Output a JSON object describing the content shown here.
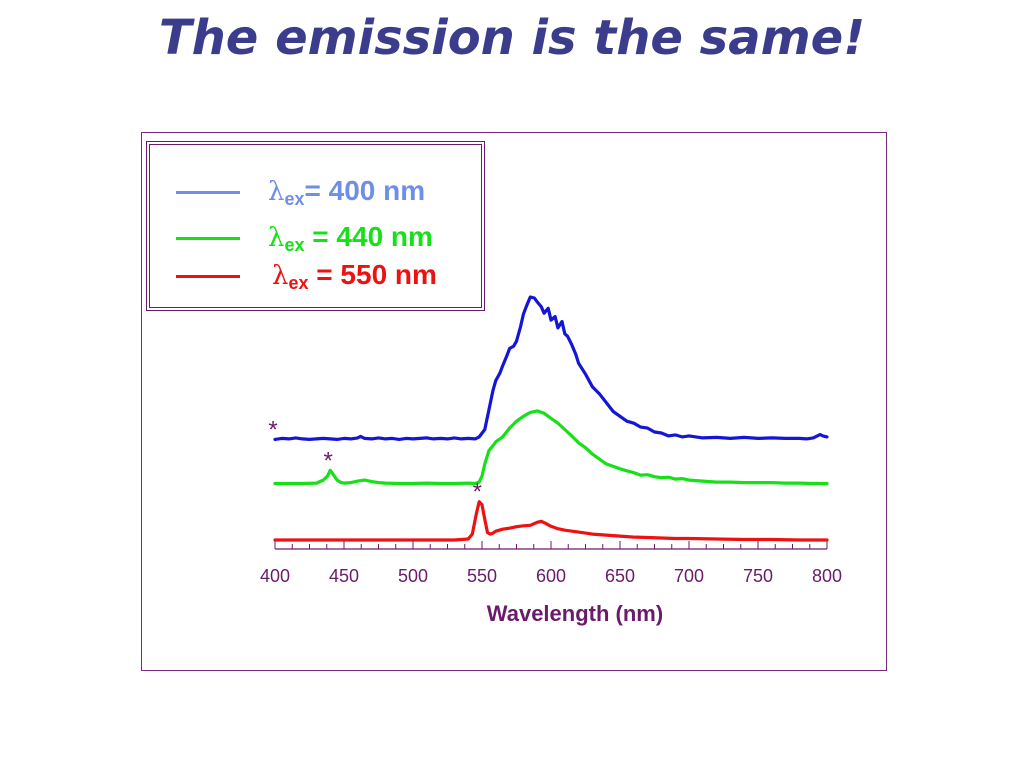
{
  "page": {
    "title": "The emission is the same!"
  },
  "chart_data": {
    "type": "line",
    "xlabel": "Wavelength (nm)",
    "ylabel": "",
    "xlim": [
      400,
      800
    ],
    "xticks": [
      400,
      450,
      500,
      550,
      600,
      650,
      700,
      750,
      800
    ],
    "y_axis_shown": false,
    "legend_position": "top-left",
    "series": [
      {
        "name_prefix": "λ",
        "name_sub": "ex",
        "name_suffix": "= 400 nm",
        "color": "#1515d6",
        "legend_color": "#6f8fe6",
        "x": [
          400,
          405,
          410,
          415,
          420,
          425,
          430,
          435,
          440,
          445,
          450,
          455,
          460,
          462,
          465,
          470,
          475,
          480,
          485,
          490,
          495,
          500,
          505,
          510,
          515,
          520,
          525,
          530,
          535,
          540,
          545,
          548,
          552,
          555,
          558,
          560,
          563,
          565,
          568,
          570,
          573,
          575,
          578,
          580,
          582,
          585,
          588,
          590,
          593,
          595,
          598,
          600,
          603,
          605,
          608,
          610,
          612,
          615,
          618,
          620,
          625,
          630,
          635,
          640,
          645,
          650,
          655,
          660,
          665,
          670,
          675,
          680,
          685,
          690,
          695,
          700,
          710,
          720,
          730,
          740,
          750,
          760,
          770,
          780,
          785,
          790,
          793,
          795,
          797,
          800
        ],
        "y": [
          2.05,
          2.07,
          2.06,
          2.08,
          2.06,
          2.05,
          2.06,
          2.07,
          2.06,
          2.05,
          2.07,
          2.06,
          2.08,
          2.11,
          2.07,
          2.06,
          2.08,
          2.06,
          2.07,
          2.05,
          2.07,
          2.06,
          2.07,
          2.08,
          2.06,
          2.07,
          2.06,
          2.08,
          2.06,
          2.07,
          2.06,
          2.1,
          2.25,
          2.65,
          3.05,
          3.25,
          3.4,
          3.55,
          3.75,
          3.9,
          3.95,
          4.05,
          4.35,
          4.6,
          4.75,
          4.95,
          4.93,
          4.85,
          4.75,
          4.62,
          4.72,
          4.48,
          4.55,
          4.32,
          4.45,
          4.2,
          4.15,
          3.98,
          3.78,
          3.6,
          3.38,
          3.12,
          2.98,
          2.8,
          2.62,
          2.52,
          2.42,
          2.38,
          2.3,
          2.28,
          2.2,
          2.18,
          2.12,
          2.14,
          2.1,
          2.12,
          2.08,
          2.09,
          2.07,
          2.09,
          2.07,
          2.08,
          2.07,
          2.07,
          2.06,
          2.08,
          2.12,
          2.15,
          2.12,
          2.1
        ]
      },
      {
        "name_prefix": "λ",
        "name_sub": "ex",
        "name_suffix": " = 440 nm",
        "color": "#16e016",
        "legend_color": "#16e016",
        "x": [
          400,
          410,
          420,
          430,
          435,
          438,
          440,
          442,
          445,
          448,
          450,
          455,
          460,
          465,
          470,
          475,
          480,
          490,
          500,
          510,
          520,
          530,
          540,
          545,
          548,
          550,
          552,
          555,
          558,
          560,
          565,
          570,
          575,
          580,
          585,
          590,
          595,
          600,
          605,
          610,
          615,
          620,
          625,
          630,
          635,
          640,
          645,
          650,
          655,
          660,
          665,
          670,
          675,
          680,
          685,
          690,
          695,
          700,
          710,
          720,
          730,
          740,
          750,
          760,
          770,
          780,
          790,
          800
        ],
        "y": [
          1.15,
          1.15,
          1.15,
          1.16,
          1.22,
          1.3,
          1.42,
          1.34,
          1.22,
          1.17,
          1.16,
          1.17,
          1.2,
          1.22,
          1.19,
          1.17,
          1.16,
          1.15,
          1.15,
          1.16,
          1.15,
          1.15,
          1.16,
          1.15,
          1.18,
          1.3,
          1.55,
          1.82,
          1.92,
          2.0,
          2.1,
          2.28,
          2.42,
          2.52,
          2.6,
          2.63,
          2.58,
          2.48,
          2.38,
          2.25,
          2.12,
          1.98,
          1.88,
          1.75,
          1.65,
          1.55,
          1.5,
          1.45,
          1.41,
          1.37,
          1.32,
          1.33,
          1.29,
          1.27,
          1.28,
          1.24,
          1.25,
          1.22,
          1.2,
          1.18,
          1.18,
          1.17,
          1.17,
          1.17,
          1.16,
          1.16,
          1.15,
          1.15
        ]
      },
      {
        "name_prefix": "λ",
        "name_sub": "ex",
        "name_suffix": " = 550 nm",
        "color": "#ee1111",
        "legend_color": "#ee1111",
        "x": [
          400,
          420,
          440,
          460,
          480,
          500,
          520,
          530,
          540,
          543,
          546,
          548,
          550,
          552,
          554,
          556,
          558,
          560,
          565,
          570,
          575,
          580,
          585,
          590,
          593,
          596,
          600,
          605,
          610,
          620,
          630,
          640,
          650,
          660,
          670,
          680,
          690,
          700,
          720,
          740,
          760,
          780,
          800
        ],
        "y": [
          0.0,
          0.0,
          0.0,
          0.0,
          0.0,
          0.0,
          0.0,
          0.0,
          0.02,
          0.12,
          0.55,
          0.78,
          0.72,
          0.42,
          0.15,
          0.12,
          0.14,
          0.18,
          0.22,
          0.24,
          0.27,
          0.29,
          0.3,
          0.36,
          0.38,
          0.34,
          0.28,
          0.23,
          0.2,
          0.16,
          0.12,
          0.1,
          0.08,
          0.06,
          0.05,
          0.04,
          0.03,
          0.03,
          0.02,
          0.01,
          0.01,
          0.0,
          0.0
        ]
      }
    ],
    "annotations": [
      {
        "text": "*",
        "x": 400,
        "series": 0,
        "color": "#6a1b6a"
      },
      {
        "text": "*",
        "x": 440,
        "series": 1,
        "color": "#6a1b6a"
      },
      {
        "text": "*",
        "x": 548,
        "series": 2,
        "color": "#6a1b6a"
      }
    ],
    "colors": {
      "axis": "#6a1b6a",
      "title": "#3b3d8c"
    }
  }
}
